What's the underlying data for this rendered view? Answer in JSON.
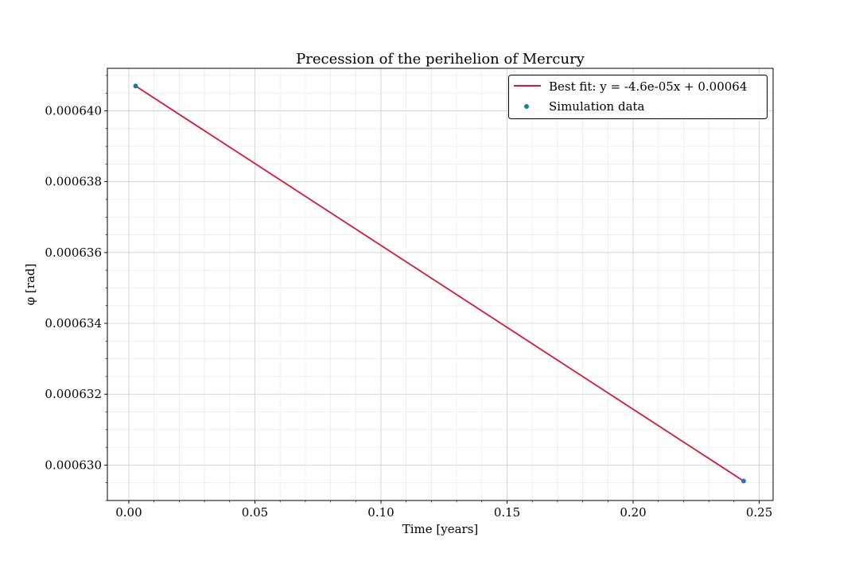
{
  "chart_data": {
    "type": "scatter",
    "title": "Precession of the perihelion of Mercury",
    "xlabel": "Time [years]",
    "ylabel": "φ [rad]",
    "xlim": [
      -0.0085,
      0.2555
    ],
    "ylim": [
      0.000629,
      0.0006412
    ],
    "x_ticks": [
      0.0,
      0.05,
      0.1,
      0.15,
      0.2,
      0.25
    ],
    "x_tick_labels": [
      "0.00",
      "0.05",
      "0.10",
      "0.15",
      "0.20",
      "0.25"
    ],
    "y_ticks": [
      0.00063,
      0.000632,
      0.000634,
      0.000636,
      0.000638,
      0.00064
    ],
    "y_tick_labels": [
      "0.000630",
      "0.000632",
      "0.000634",
      "0.000636",
      "0.000638",
      "0.000640"
    ],
    "x_minor_step": 0.01,
    "y_minor_step": 5e-07,
    "grid": true,
    "legend_position": "top-right",
    "series": [
      {
        "name": "Best fit: y = -4.6e-05x + 0.00064",
        "kind": "line",
        "color": "#dc143c",
        "x": [
          0.0027,
          0.2438
        ],
        "y": [
          0.0006407,
          0.00062955
        ]
      },
      {
        "name": "Simulation data",
        "kind": "scatter",
        "color": "#1f77b4",
        "x": [
          0.0027,
          0.2438
        ],
        "y": [
          0.0006407,
          0.00062955
        ]
      }
    ]
  }
}
